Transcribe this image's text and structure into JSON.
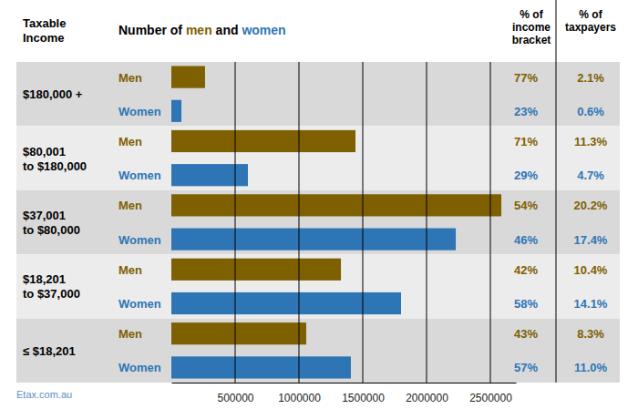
{
  "chart_data": {
    "type": "bar",
    "orientation": "horizontal",
    "title": "Number of men and women",
    "category_header": [
      "Taxable",
      "Income"
    ],
    "categories": [
      "$180,000 +",
      "$80,001 to $180,000",
      "$37,001 to $80,000",
      "$18,201 to $37,000",
      "≤ $18,201"
    ],
    "series": [
      {
        "name": "Men",
        "color": "#7f6000",
        "values": [
          264000,
          1443000,
          2586000,
          1329000,
          1057000
        ],
        "bracket_share": [
          "77%",
          "71%",
          "54%",
          "42%",
          "43%"
        ],
        "taxpayer_share": [
          "2.1%",
          "11.3%",
          "20.2%",
          "10.4%",
          "8.3%"
        ]
      },
      {
        "name": "Women",
        "color": "#2e75b6",
        "values": [
          79000,
          600000,
          2229000,
          1800000,
          1407000
        ],
        "bracket_share": [
          "23%",
          "29%",
          "46%",
          "58%",
          "57%"
        ],
        "taxpayer_share": [
          "0.6%",
          "4.7%",
          "17.4%",
          "14.1%",
          "11.0%"
        ]
      }
    ],
    "column_headers": [
      [
        "% of",
        "income",
        "bracket"
      ],
      [
        "% of",
        "taxpayers"
      ]
    ],
    "xlim": [
      0,
      2700000
    ],
    "xticks": [
      500000,
      1000000,
      1500000,
      2000000,
      2500000
    ],
    "grid": true,
    "source": "Etax.com.au"
  }
}
